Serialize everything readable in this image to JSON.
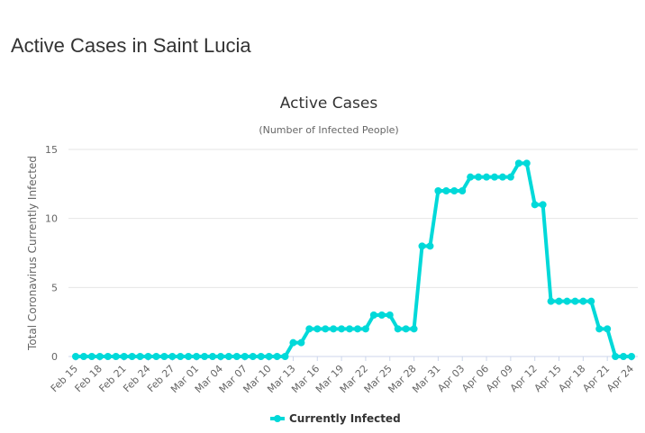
{
  "page_title": "Active Cases in Saint Lucia",
  "chart_data": {
    "type": "line",
    "title": "Active Cases",
    "subtitle": "(Number of Infected People)",
    "xlabel": "",
    "ylabel": "Total Coronavirus Currently Infected",
    "ylim": [
      0,
      15
    ],
    "yticks": [
      0,
      5,
      10,
      15
    ],
    "grid": true,
    "legend_position": "bottom",
    "color": "#00d9d9",
    "start_date": "2020-02-15",
    "tick_labels": [
      "Feb 15",
      "Feb 18",
      "Feb 21",
      "Feb 24",
      "Feb 27",
      "Mar 01",
      "Mar 04",
      "Mar 07",
      "Mar 10",
      "Mar 13",
      "Mar 16",
      "Mar 19",
      "Mar 22",
      "Mar 25",
      "Mar 28",
      "Mar 31",
      "Apr 03",
      "Apr 06",
      "Apr 09",
      "Apr 12",
      "Apr 15",
      "Apr 18",
      "Apr 21",
      "Apr 24"
    ],
    "series": [
      {
        "name": "Currently Infected",
        "values": [
          0,
          0,
          0,
          0,
          0,
          0,
          0,
          0,
          0,
          0,
          0,
          0,
          0,
          0,
          0,
          0,
          0,
          0,
          0,
          0,
          0,
          0,
          0,
          0,
          0,
          0,
          0,
          1,
          1,
          2,
          2,
          2,
          2,
          2,
          2,
          2,
          2,
          3,
          3,
          3,
          2,
          2,
          2,
          8,
          8,
          12,
          12,
          12,
          12,
          13,
          13,
          13,
          13,
          13,
          13,
          14,
          14,
          11,
          11,
          4,
          4,
          4,
          4,
          4,
          4,
          2,
          2,
          0,
          0,
          0
        ]
      }
    ]
  }
}
